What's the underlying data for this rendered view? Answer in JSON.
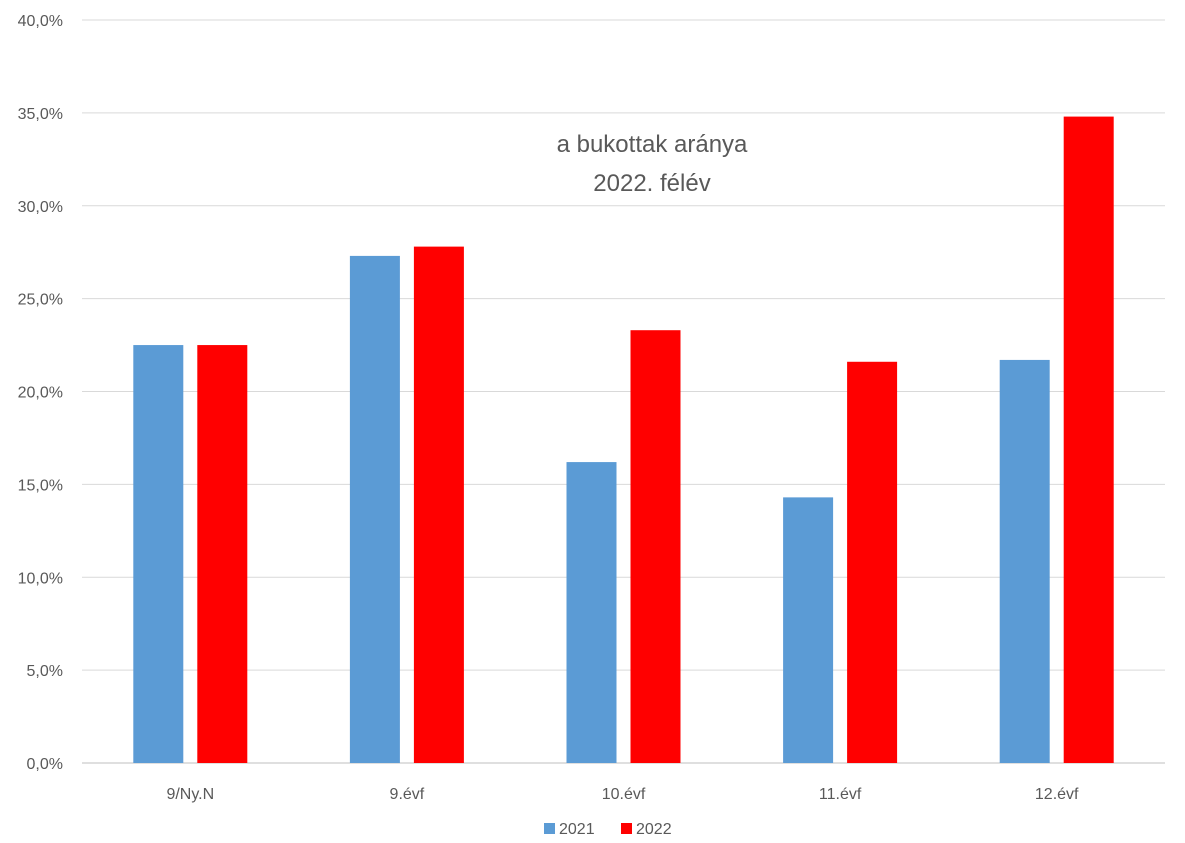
{
  "chart_data": {
    "type": "bar",
    "title_lines": [
      "a bukottak aránya",
      "2022. félév"
    ],
    "categories": [
      "9/Ny.N",
      "9.évf",
      "10.évf",
      "11.évf",
      "12.évf"
    ],
    "series": [
      {
        "name": "2021",
        "color": "#5b9bd5",
        "values": [
          22.5,
          27.3,
          16.2,
          14.3,
          21.7
        ]
      },
      {
        "name": "2022",
        "color": "#ff0000",
        "values": [
          22.5,
          27.8,
          23.3,
          21.6,
          34.8
        ]
      }
    ],
    "yticks": [
      "0,0%",
      "5,0%",
      "10,0%",
      "15,0%",
      "20,0%",
      "25,0%",
      "30,0%",
      "35,0%",
      "40,0%"
    ],
    "ylim": [
      0,
      40
    ],
    "grid": true,
    "legend": "bottom-center"
  }
}
